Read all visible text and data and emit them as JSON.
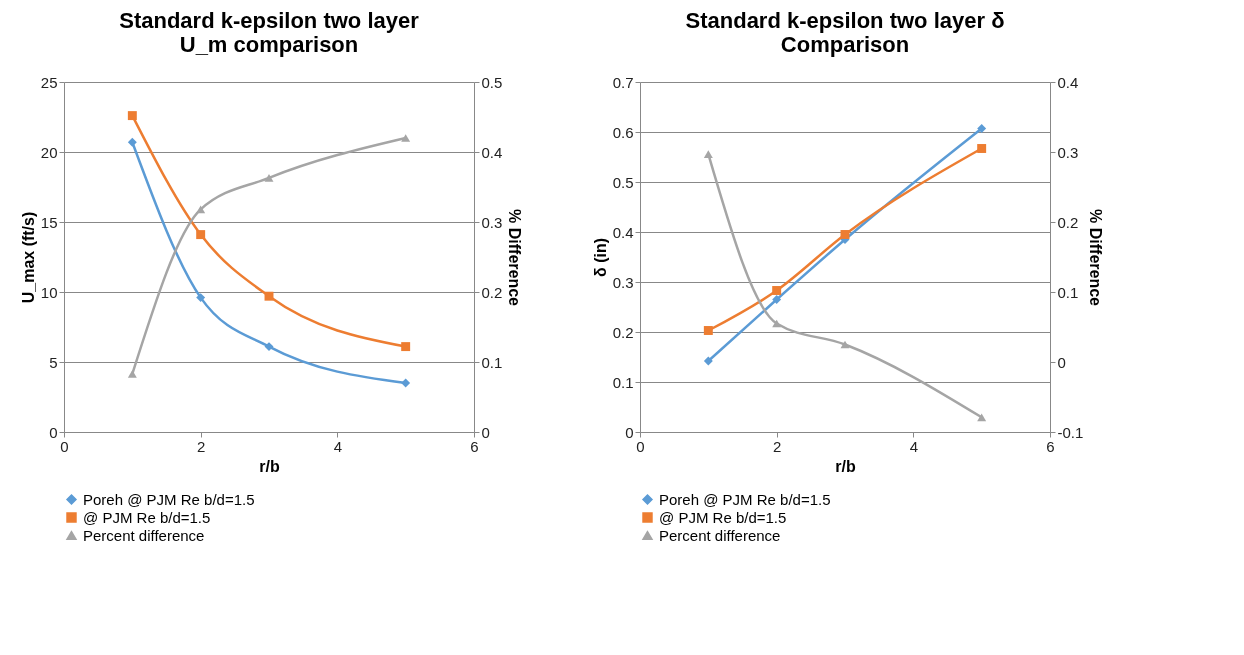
{
  "chart_data": [
    {
      "type": "line",
      "title": [
        "Standard k-epsilon two layer",
        "U_m comparison"
      ],
      "xlabel": "r/b",
      "ylabel": "U_max (ft/s)",
      "y2label": "% Difference",
      "x": [
        1,
        2,
        3,
        5
      ],
      "xlim": [
        0,
        6
      ],
      "xticks": [
        0,
        2,
        4,
        6
      ],
      "ylim": [
        0,
        25
      ],
      "yticks": [
        0,
        5,
        10,
        15,
        20,
        25
      ],
      "y2lim": [
        0,
        0.5
      ],
      "y2ticks": [
        0,
        0.1,
        0.2,
        0.3,
        0.4,
        0.5
      ],
      "grid": "y",
      "legend": "bottom",
      "series": [
        {
          "name": "Poreh @ PJM Re b/d=1.5",
          "color": "#5b9bd5",
          "marker": "diamond",
          "values": [
            20.7,
            9.6,
            6.1,
            3.5
          ]
        },
        {
          "name": "@ PJM Re b/d=1.5",
          "color": "#ed7d31",
          "marker": "square",
          "values": [
            22.6,
            14.1,
            9.7,
            6.1
          ]
        },
        {
          "name": "Percent difference",
          "color": "#a5a5a5",
          "marker": "triangle",
          "axis": "y2",
          "values": [
            0.083,
            0.318,
            0.363,
            0.42
          ]
        }
      ]
    },
    {
      "type": "line",
      "title": [
        "Standard k-epsilon two layer δ",
        "Comparison"
      ],
      "xlabel": "r/b",
      "ylabel": "δ (in)",
      "y2label": "% Difference",
      "x": [
        1,
        2,
        3,
        5
      ],
      "xlim": [
        0,
        6
      ],
      "xticks": [
        0,
        2,
        4,
        6
      ],
      "ylim": [
        0,
        0.7
      ],
      "yticks": [
        0,
        0.1,
        0.2,
        0.3,
        0.4,
        0.5,
        0.6,
        0.7
      ],
      "y2lim": [
        -0.1,
        0.4
      ],
      "y2ticks": [
        -0.1,
        0,
        0.1,
        0.2,
        0.3,
        0.4
      ],
      "grid": "y",
      "legend": "bottom",
      "series": [
        {
          "name": "Poreh @ PJM Re b/d=1.5",
          "color": "#5b9bd5",
          "marker": "diamond",
          "values": [
            0.142,
            0.265,
            0.385,
            0.607
          ]
        },
        {
          "name": "@ PJM Re b/d=1.5",
          "color": "#ed7d31",
          "marker": "square",
          "values": [
            0.203,
            0.283,
            0.395,
            0.567
          ]
        },
        {
          "name": "Percent difference",
          "color": "#a5a5a5",
          "marker": "triangle",
          "axis": "y2",
          "values": [
            0.297,
            0.055,
            0.025,
            -0.079
          ]
        }
      ]
    }
  ]
}
